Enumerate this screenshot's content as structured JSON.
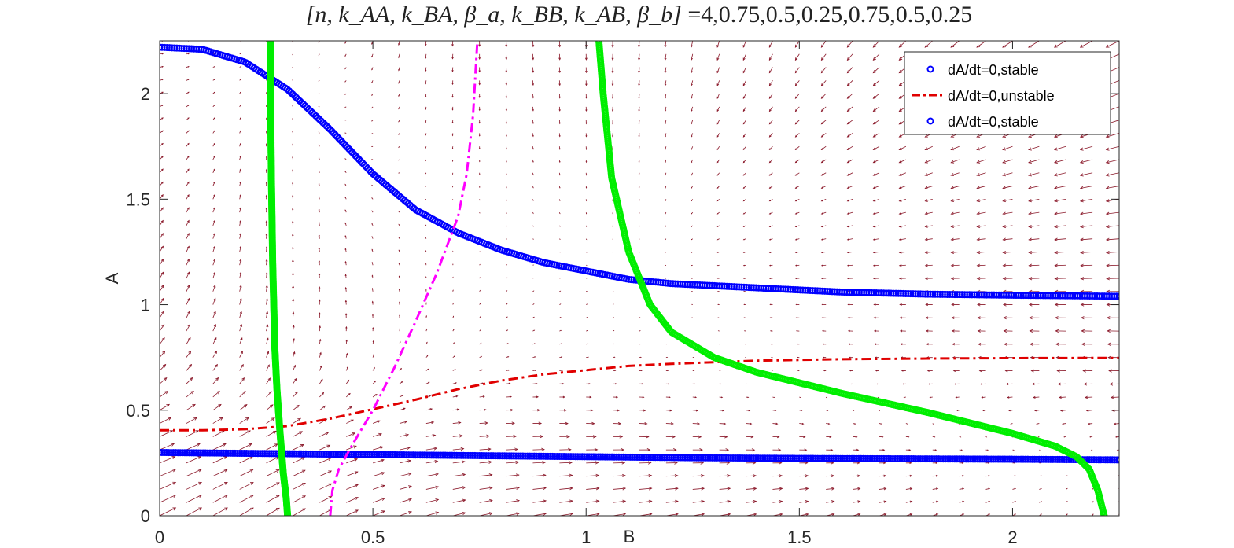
{
  "chart_data": {
    "type": "line",
    "title_tex": "[n, k_AA, k_BA, β_a, k_BB, k_AB, β_b]",
    "title_eq": "=",
    "title_values": "4,0.75,0.5,0.25,0.75,0.5,0.25",
    "xlabel": "B",
    "ylabel": "A",
    "xlim": [
      0,
      2.25
    ],
    "ylim": [
      0,
      2.25
    ],
    "xticks": [
      0,
      0.5,
      1,
      1.5,
      2
    ],
    "xtick_labels": [
      "0",
      "0.5",
      "1",
      "1.5",
      "2"
    ],
    "yticks": [
      0,
      0.5,
      1,
      1.5,
      2
    ],
    "ytick_labels": [
      "0",
      "0.5",
      "1",
      "1.5",
      "2"
    ],
    "grid": false,
    "legend_position": "top-right",
    "legend": [
      {
        "label": "dA/dt=0,stable",
        "style": "circle-markers",
        "color": "#0000ff"
      },
      {
        "label": "dA/dt=0,unstable",
        "style": "dash-dot",
        "color": "#e00000"
      },
      {
        "label": "dA/dt=0,stable",
        "style": "circle-markers",
        "color": "#0000ff"
      }
    ],
    "series": [
      {
        "name": "dA/dt=0,stable",
        "style": "circle-markers",
        "color": "#0000ff",
        "x": [
          0,
          0.1,
          0.2,
          0.3,
          0.4,
          0.5,
          0.6,
          0.7,
          0.8,
          0.9,
          1.0,
          1.1,
          1.2,
          1.4,
          1.6,
          1.8,
          2.0,
          2.25
        ],
        "y": [
          2.22,
          2.21,
          2.15,
          2.02,
          1.83,
          1.62,
          1.45,
          1.34,
          1.26,
          1.2,
          1.16,
          1.12,
          1.1,
          1.08,
          1.06,
          1.05,
          1.045,
          1.04
        ]
      },
      {
        "name": "dA/dt=0,unstable",
        "style": "dash-dot",
        "color": "#e00000",
        "x": [
          0,
          0.1,
          0.2,
          0.3,
          0.4,
          0.5,
          0.6,
          0.7,
          0.8,
          0.9,
          1.0,
          1.1,
          1.2,
          1.4,
          1.6,
          1.8,
          2.0,
          2.25
        ],
        "y": [
          0.405,
          0.405,
          0.41,
          0.425,
          0.46,
          0.505,
          0.55,
          0.6,
          0.64,
          0.67,
          0.69,
          0.71,
          0.72,
          0.735,
          0.742,
          0.745,
          0.747,
          0.748
        ]
      },
      {
        "name": "dA/dt=0,stable",
        "style": "circle-markers",
        "color": "#0000ff",
        "x": [
          0,
          0.25,
          0.5,
          0.75,
          1.0,
          1.25,
          1.5,
          1.75,
          2.0,
          2.25
        ],
        "y": [
          0.3,
          0.295,
          0.29,
          0.285,
          0.28,
          0.275,
          0.272,
          0.27,
          0.268,
          0.265
        ]
      },
      {
        "style": "circle-markers",
        "color": "#00ee00",
        "x": [
          0.26,
          0.26,
          0.262,
          0.265,
          0.27,
          0.275,
          0.282,
          0.29,
          0.297,
          0.3
        ],
        "y": [
          2.25,
          2.0,
          1.6,
          1.2,
          0.8,
          0.6,
          0.4,
          0.2,
          0.08,
          0.0
        ]
      },
      {
        "style": "circle-markers",
        "color": "#00ee00",
        "x": [
          1.03,
          1.04,
          1.06,
          1.1,
          1.15,
          1.2,
          1.3,
          1.4,
          1.6,
          1.8,
          2.0,
          2.1,
          2.15,
          2.18,
          2.2,
          2.215
        ],
        "y": [
          2.25,
          2.0,
          1.6,
          1.25,
          1.0,
          0.87,
          0.75,
          0.68,
          0.58,
          0.49,
          0.39,
          0.33,
          0.28,
          0.22,
          0.12,
          0.0
        ]
      },
      {
        "style": "dash-dot",
        "color": "#ff00ff",
        "x": [
          0.4,
          0.405,
          0.42,
          0.45,
          0.5,
          0.55,
          0.6,
          0.65,
          0.7,
          0.72,
          0.735,
          0.745
        ],
        "y": [
          0.0,
          0.12,
          0.22,
          0.33,
          0.5,
          0.7,
          0.92,
          1.15,
          1.42,
          1.62,
          1.9,
          2.25
        ]
      }
    ],
    "vector_field": {
      "style": "quiver",
      "color": "#8b1a2b",
      "grid_n": 36,
      "params": {
        "n": 4,
        "k_AA": 0.75,
        "k_BA": 0.5,
        "beta_a": 0.25,
        "k_BB": 0.75,
        "k_AB": 0.5,
        "beta_b": 0.25
      }
    }
  }
}
